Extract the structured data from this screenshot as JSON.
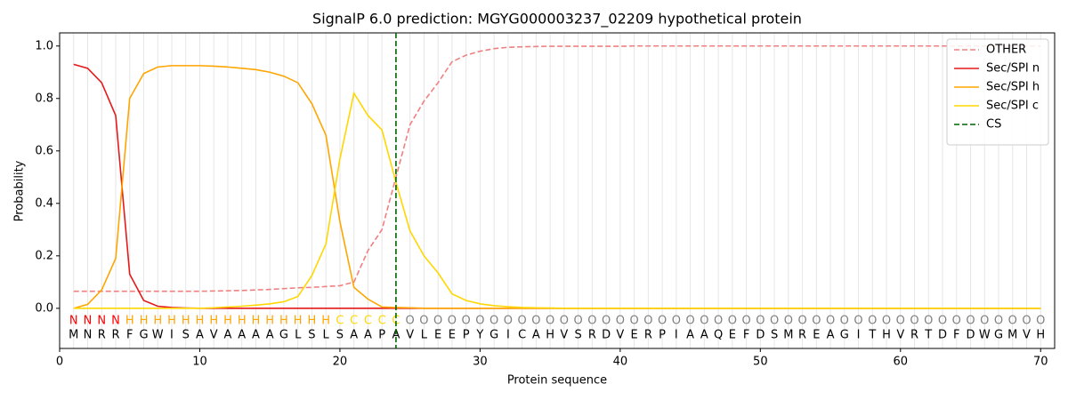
{
  "chart_data": {
    "type": "line",
    "title": "SignalP 6.0 prediction: MGYG000003237_02209 hypothetical protein",
    "x_label": "Protein sequence",
    "y_label": "Probability",
    "x": [
      1,
      2,
      3,
      4,
      5,
      6,
      7,
      8,
      9,
      10,
      11,
      12,
      13,
      14,
      15,
      16,
      17,
      18,
      19,
      20,
      21,
      22,
      23,
      24,
      25,
      26,
      27,
      28,
      29,
      30,
      31,
      32,
      33,
      34,
      35,
      36,
      37,
      38,
      39,
      40,
      41,
      42,
      43,
      44,
      45,
      46,
      47,
      48,
      49,
      50,
      51,
      52,
      53,
      54,
      55,
      56,
      57,
      58,
      59,
      60,
      61,
      62,
      63,
      64,
      65,
      66,
      67,
      68,
      69,
      70
    ],
    "series": [
      {
        "name": "OTHER",
        "color": "#f08080",
        "dashed": true,
        "values": [
          0.065,
          0.065,
          0.065,
          0.065,
          0.065,
          0.065,
          0.065,
          0.065,
          0.065,
          0.065,
          0.066,
          0.067,
          0.068,
          0.07,
          0.072,
          0.075,
          0.078,
          0.08,
          0.083,
          0.086,
          0.1,
          0.22,
          0.3,
          0.5,
          0.7,
          0.79,
          0.86,
          0.94,
          0.965,
          0.98,
          0.99,
          0.995,
          0.997,
          0.998,
          0.999,
          0.999,
          0.999,
          0.999,
          0.999,
          0.999,
          1.0,
          1.0,
          1.0,
          1.0,
          1.0,
          1.0,
          1.0,
          1.0,
          1.0,
          1.0,
          1.0,
          1.0,
          1.0,
          1.0,
          1.0,
          1.0,
          1.0,
          1.0,
          1.0,
          1.0,
          1.0,
          1.0,
          1.0,
          1.0,
          1.0,
          1.0,
          1.0,
          1.0,
          1.0,
          1.0
        ]
      },
      {
        "name": "Sec/SPI n",
        "color": "#e41a1a",
        "dashed": false,
        "values": [
          0.93,
          0.915,
          0.86,
          0.735,
          0.13,
          0.03,
          0.008,
          0.003,
          0.001,
          0,
          0,
          0,
          0,
          0,
          0,
          0,
          0,
          0,
          0,
          0,
          0,
          0,
          0,
          0,
          0,
          0,
          0,
          0,
          0,
          0,
          0,
          0,
          0,
          0,
          0,
          0,
          0,
          0,
          0,
          0,
          0,
          0,
          0,
          0,
          0,
          0,
          0,
          0,
          0,
          0,
          0,
          0,
          0,
          0,
          0,
          0,
          0,
          0,
          0,
          0,
          0,
          0,
          0,
          0,
          0,
          0,
          0,
          0,
          0,
          0
        ]
      },
      {
        "name": "Sec/SPI h",
        "color": "orange",
        "dashed": false,
        "values": [
          0,
          0.015,
          0.07,
          0.19,
          0.8,
          0.895,
          0.92,
          0.925,
          0.925,
          0.925,
          0.923,
          0.92,
          0.915,
          0.91,
          0.9,
          0.885,
          0.86,
          0.78,
          0.66,
          0.33,
          0.08,
          0.035,
          0.005,
          0.003,
          0.002,
          0,
          0,
          0,
          0,
          0,
          0,
          0,
          0,
          0,
          0,
          0,
          0,
          0,
          0,
          0,
          0,
          0,
          0,
          0,
          0,
          0,
          0,
          0,
          0,
          0,
          0,
          0,
          0,
          0,
          0,
          0,
          0,
          0,
          0,
          0,
          0,
          0,
          0,
          0,
          0,
          0,
          0,
          0,
          0,
          0
        ]
      },
      {
        "name": "Sec/SPI c",
        "color": "gold",
        "dashed": false,
        "values": [
          0,
          0,
          0,
          0,
          0,
          0,
          0,
          0,
          0,
          0,
          0.002,
          0.005,
          0.008,
          0.012,
          0.017,
          0.025,
          0.045,
          0.125,
          0.245,
          0.57,
          0.82,
          0.735,
          0.68,
          0.48,
          0.295,
          0.2,
          0.135,
          0.055,
          0.03,
          0.017,
          0.01,
          0.006,
          0.003,
          0.002,
          0.001,
          0,
          0,
          0,
          0,
          0,
          0,
          0,
          0,
          0,
          0,
          0,
          0,
          0,
          0,
          0,
          0,
          0,
          0,
          0,
          0,
          0,
          0,
          0,
          0,
          0,
          0,
          0,
          0,
          0,
          0,
          0,
          0,
          0,
          0,
          0
        ]
      }
    ],
    "cleavage_site": {
      "name": "CS",
      "x": 24,
      "color": "darkgreen"
    },
    "residue_labels": [
      "N",
      "N",
      "N",
      "N",
      "H",
      "H",
      "H",
      "H",
      "H",
      "H",
      "H",
      "H",
      "H",
      "H",
      "H",
      "H",
      "H",
      "H",
      "H",
      "C",
      "C",
      "C",
      "C",
      "C",
      "O",
      "O",
      "O",
      "O",
      "O",
      "O",
      "O",
      "O",
      "O",
      "O",
      "O",
      "O",
      "O",
      "O",
      "O",
      "O",
      "O",
      "O",
      "O",
      "O",
      "O",
      "O",
      "O",
      "O",
      "O",
      "O",
      "O",
      "O",
      "O",
      "O",
      "O",
      "O",
      "O",
      "O",
      "O",
      "O",
      "O",
      "O",
      "O",
      "O",
      "O",
      "O",
      "O",
      "O",
      "O",
      "O"
    ],
    "label_colors": {
      "N": "red",
      "H": "orange",
      "C": "gold",
      "O": "gray"
    },
    "residues": [
      "M",
      "N",
      "R",
      "R",
      "F",
      "G",
      "W",
      "I",
      "S",
      "A",
      "V",
      "A",
      "A",
      "A",
      "A",
      "G",
      "L",
      "S",
      "L",
      "S",
      "A",
      "A",
      "P",
      "A",
      "V",
      "L",
      "E",
      "E",
      "P",
      "Y",
      "G",
      "I",
      "C",
      "A",
      "H",
      "V",
      "S",
      "R",
      "D",
      "V",
      "E",
      "R",
      "P",
      "I",
      "A",
      "A",
      "Q",
      "E",
      "F",
      "D",
      "S",
      "M",
      "R",
      "E",
      "A",
      "G",
      "I",
      "T",
      "H",
      "V",
      "R",
      "T",
      "D",
      "F",
      "D",
      "W",
      "G",
      "M",
      "V",
      "H"
    ],
    "xlim": [
      0,
      71
    ],
    "ylim": [
      -0.153,
      1.05
    ],
    "xticks": [
      0,
      10,
      20,
      30,
      40,
      50,
      60,
      70
    ],
    "yticks": [
      {
        "value": 0,
        "label": "0.0"
      },
      {
        "value": 0.2,
        "label": "0.2"
      },
      {
        "value": 0.4,
        "label": "0.4"
      },
      {
        "value": 0.6,
        "label": "0.6"
      },
      {
        "value": 0.8,
        "label": "0.8"
      },
      {
        "value": 1.0,
        "label": "1.0"
      }
    ],
    "grid": true,
    "legend": "upper right"
  }
}
